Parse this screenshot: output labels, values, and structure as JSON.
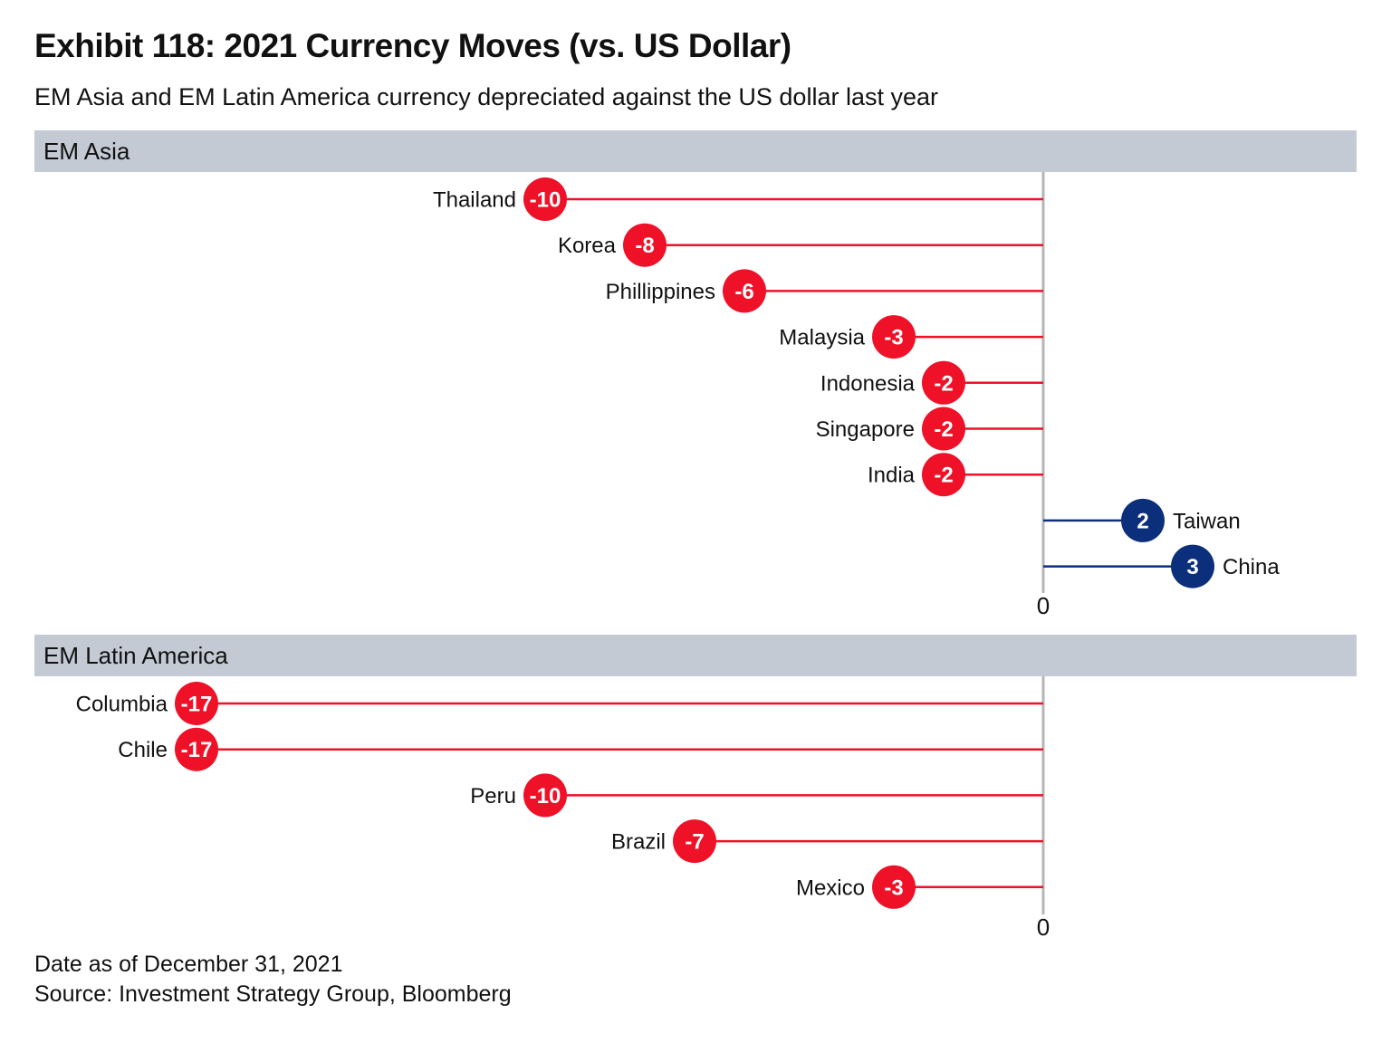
{
  "title": "Exhibit 118: 2021 Currency Moves (vs. US Dollar)",
  "subtitle": "EM Asia and EM Latin America currency depreciated against the US dollar last year",
  "colors": {
    "negative": "#ee1127",
    "positive": "#0b2f7a",
    "axis": "#b5b5b5",
    "header_bg": "#c4cad3"
  },
  "chart_data": [
    {
      "type": "bar",
      "style": "lollipop-horizontal",
      "title": "EM Asia",
      "categories": [
        "Thailand",
        "Korea",
        "Phillippines",
        "Malaysia",
        "Indonesia",
        "Singapore",
        "India",
        "Taiwan",
        "China"
      ],
      "values": [
        -10,
        -8,
        -6,
        -3,
        -2,
        -2,
        -2,
        2,
        3
      ],
      "xlim": [
        -20,
        5
      ],
      "ticks": [
        0
      ],
      "grid": false
    },
    {
      "type": "bar",
      "style": "lollipop-horizontal",
      "title": "EM Latin America",
      "categories": [
        "Columbia",
        "Chile",
        "Peru",
        "Brazil",
        "Mexico"
      ],
      "values": [
        -17,
        -17,
        -10,
        -7,
        -3
      ],
      "xlim": [
        -20,
        5
      ],
      "ticks": [
        0
      ],
      "grid": false
    }
  ],
  "footnote": {
    "line1": "Date as of December 31, 2021",
    "line2": "Source: Investment Strategy Group, Bloomberg"
  }
}
